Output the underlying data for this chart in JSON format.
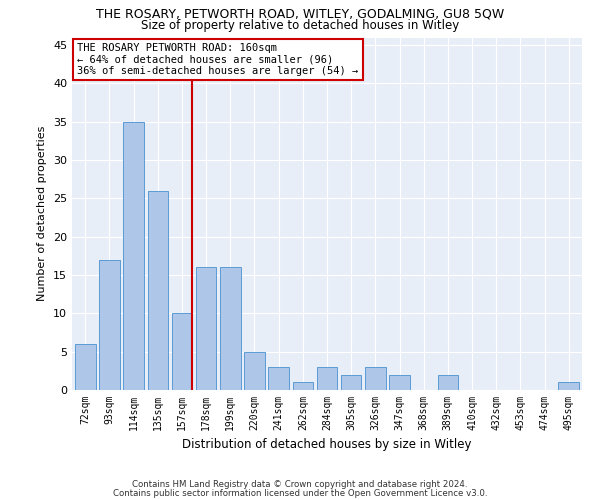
{
  "title": "THE ROSARY, PETWORTH ROAD, WITLEY, GODALMING, GU8 5QW",
  "subtitle": "Size of property relative to detached houses in Witley",
  "xlabel": "Distribution of detached houses by size in Witley",
  "ylabel": "Number of detached properties",
  "categories": [
    "72sqm",
    "93sqm",
    "114sqm",
    "135sqm",
    "157sqm",
    "178sqm",
    "199sqm",
    "220sqm",
    "241sqm",
    "262sqm",
    "284sqm",
    "305sqm",
    "326sqm",
    "347sqm",
    "368sqm",
    "389sqm",
    "410sqm",
    "432sqm",
    "453sqm",
    "474sqm",
    "495sqm"
  ],
  "values": [
    6,
    17,
    35,
    26,
    10,
    16,
    16,
    5,
    3,
    1,
    3,
    2,
    3,
    2,
    0,
    2,
    0,
    0,
    0,
    0,
    1
  ],
  "bar_color": "#aec6e8",
  "bar_edge_color": "#5b9bd5",
  "highlight_index": 4,
  "highlight_color_red": "#cc0000",
  "annotation_line1": "THE ROSARY PETWORTH ROAD: 160sqm",
  "annotation_line2": "← 64% of detached houses are smaller (96)",
  "annotation_line3": "36% of semi-detached houses are larger (54) →",
  "ylim": [
    0,
    46
  ],
  "yticks": [
    0,
    5,
    10,
    15,
    20,
    25,
    30,
    35,
    40,
    45
  ],
  "background_color": "#e8eef8",
  "grid_color": "#ffffff",
  "footer_line1": "Contains HM Land Registry data © Crown copyright and database right 2024.",
  "footer_line2": "Contains public sector information licensed under the Open Government Licence v3.0."
}
